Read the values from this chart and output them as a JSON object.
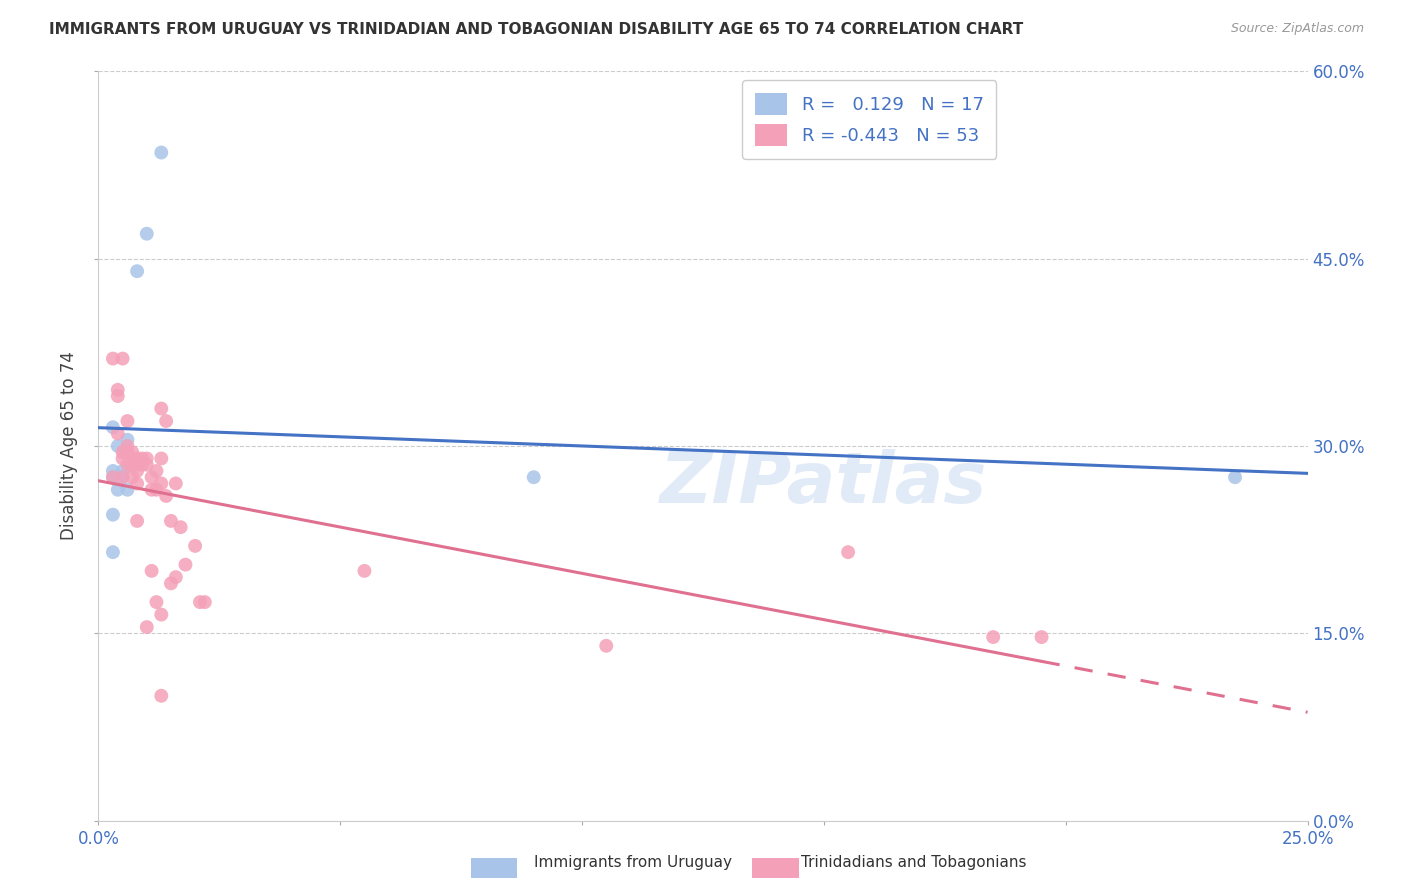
{
  "title": "IMMIGRANTS FROM URUGUAY VS TRINIDADIAN AND TOBAGONIAN DISABILITY AGE 65 TO 74 CORRELATION CHART",
  "source": "Source: ZipAtlas.com",
  "ylabel_label": "Disability Age 65 to 74",
  "legend_label1": "Immigrants from Uruguay",
  "legend_label2": "Trinidadians and Tobagonians",
  "R1": "0.129",
  "N1": "17",
  "R2": "-0.443",
  "N2": "53",
  "color_blue": "#a8c4e8",
  "color_pink": "#f4a0b8",
  "color_blue_line": "#4472c4",
  "color_pink_line": "#e07090",
  "watermark": "ZIPatlas",
  "xlim": [
    0.0,
    0.25
  ],
  "ylim": [
    0.0,
    0.6
  ],
  "x_ticks": [
    0.0,
    0.05,
    0.1,
    0.15,
    0.2,
    0.25
  ],
  "y_ticks": [
    0.0,
    0.15,
    0.3,
    0.45,
    0.6
  ],
  "uruguay_x": [
    0.005,
    0.01,
    0.008,
    0.003,
    0.003,
    0.004,
    0.005,
    0.006,
    0.003,
    0.004,
    0.004,
    0.003,
    0.006,
    0.003,
    0.09,
    0.013,
    0.235
  ],
  "uruguay_y": [
    0.28,
    0.47,
    0.44,
    0.315,
    0.275,
    0.3,
    0.275,
    0.265,
    0.245,
    0.265,
    0.275,
    0.28,
    0.305,
    0.215,
    0.275,
    0.535,
    0.275
  ],
  "tt_x": [
    0.003,
    0.004,
    0.004,
    0.005,
    0.005,
    0.005,
    0.006,
    0.006,
    0.006,
    0.007,
    0.007,
    0.008,
    0.008,
    0.008,
    0.008,
    0.009,
    0.009,
    0.01,
    0.01,
    0.011,
    0.011,
    0.012,
    0.012,
    0.013,
    0.013,
    0.013,
    0.013,
    0.014,
    0.014,
    0.015,
    0.015,
    0.016,
    0.016,
    0.017,
    0.018,
    0.02,
    0.021,
    0.022,
    0.055,
    0.105,
    0.155,
    0.185,
    0.195,
    0.003,
    0.004,
    0.005,
    0.006,
    0.007,
    0.008,
    0.01,
    0.011,
    0.012,
    0.013
  ],
  "tt_y": [
    0.275,
    0.34,
    0.31,
    0.275,
    0.295,
    0.29,
    0.32,
    0.3,
    0.285,
    0.295,
    0.285,
    0.29,
    0.28,
    0.285,
    0.27,
    0.29,
    0.285,
    0.285,
    0.29,
    0.265,
    0.275,
    0.265,
    0.28,
    0.27,
    0.33,
    0.29,
    0.165,
    0.32,
    0.26,
    0.19,
    0.24,
    0.195,
    0.27,
    0.235,
    0.205,
    0.22,
    0.175,
    0.175,
    0.2,
    0.14,
    0.215,
    0.147,
    0.147,
    0.37,
    0.345,
    0.37,
    0.295,
    0.275,
    0.24,
    0.155,
    0.2,
    0.175,
    0.1
  ]
}
